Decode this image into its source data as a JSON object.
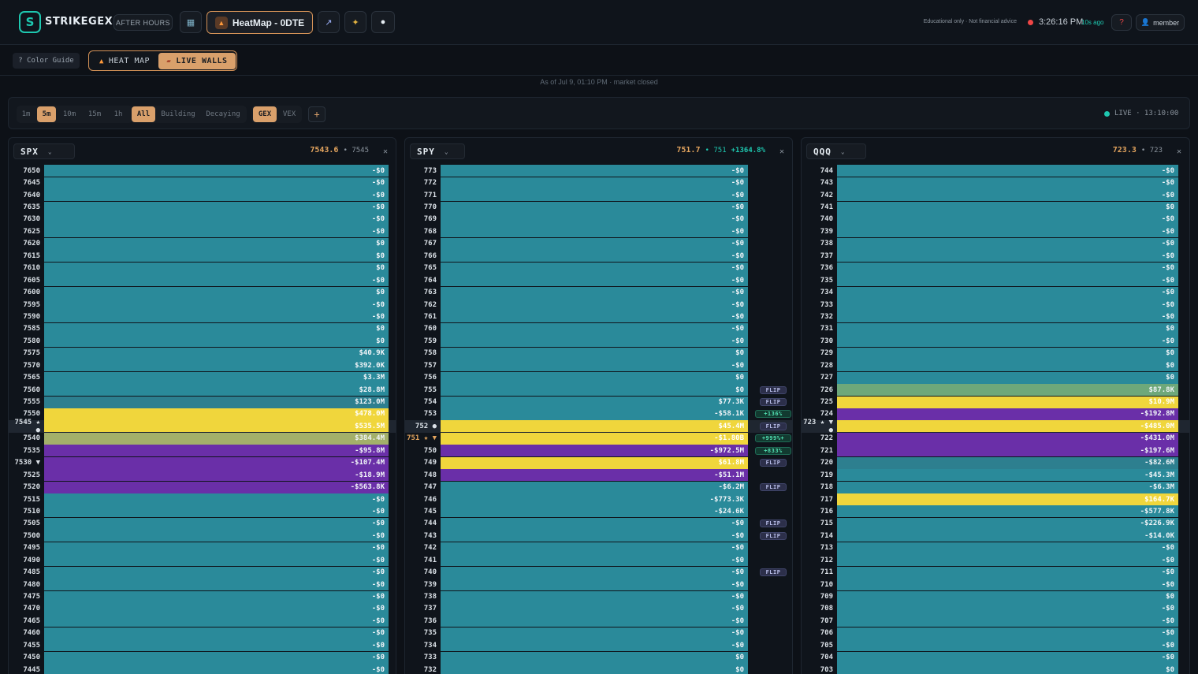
{
  "topbar": {
    "brand": "STRIKEGEX",
    "logo_letter": "S",
    "after_hours": "AFTER HOURS",
    "heatmap_label": "HeatMap - 0DTE",
    "disclaimer": "Educational only · Not financial advice",
    "clock": "3:26:16 PM",
    "ago": "10s ago",
    "help": "?",
    "member": "member",
    "icons": [
      "book-icon",
      "flame-icon",
      "chart-icon",
      "sparkle-icon",
      "circle-icon",
      "user-icon"
    ],
    "colors": {
      "accent": "#d9a06b",
      "teal": "#1ec8b0",
      "alert": "#f04646"
    }
  },
  "bar2": {
    "color_guide": "? Color Guide",
    "tab_heat": "HEAT MAP",
    "tab_walls": "LIVE WALLS",
    "asof": "As of Jul 9, 01:10 PM · market closed"
  },
  "controls": {
    "timeframes": [
      "1m",
      "5m",
      "10m",
      "15m",
      "1h"
    ],
    "filters": [
      "All",
      "Building",
      "Decaying"
    ],
    "greeks": [
      "GEX",
      "VEX"
    ],
    "add": "+",
    "live": "LIVE · 13:10:00"
  },
  "colors": {
    "teal": "#2a8a9a",
    "tealLight": "#2d7f8f",
    "green": "#6ea87a",
    "olive": "#a3b06a",
    "yellow": "#f0d63c",
    "purple": "#6a2fa8",
    "purpleLight": "#5c3aa0"
  },
  "panels": [
    {
      "symbol": "SPX",
      "price": "7543.6",
      "sub": "• 7545",
      "pct": "",
      "rows": [
        {
          "s": "7650",
          "v": "-$0",
          "c": "teal"
        },
        {
          "s": "7645",
          "v": "-$0",
          "c": "teal"
        },
        {
          "s": "7640",
          "v": "-$0",
          "c": "teal"
        },
        {
          "s": "7635",
          "v": "-$0",
          "c": "teal"
        },
        {
          "s": "7630",
          "v": "-$0",
          "c": "teal"
        },
        {
          "s": "7625",
          "v": "-$0",
          "c": "teal"
        },
        {
          "s": "7620",
          "v": "$0",
          "c": "teal"
        },
        {
          "s": "7615",
          "v": "$0",
          "c": "teal"
        },
        {
          "s": "7610",
          "v": "$0",
          "c": "teal"
        },
        {
          "s": "7605",
          "v": "-$0",
          "c": "teal"
        },
        {
          "s": "7600",
          "v": "$0",
          "c": "teal"
        },
        {
          "s": "7595",
          "v": "-$0",
          "c": "teal"
        },
        {
          "s": "7590",
          "v": "-$0",
          "c": "teal"
        },
        {
          "s": "7585",
          "v": "$0",
          "c": "teal"
        },
        {
          "s": "7580",
          "v": "$0",
          "c": "teal"
        },
        {
          "s": "7575",
          "v": "$40.9K",
          "c": "teal"
        },
        {
          "s": "7570",
          "v": "$392.0K",
          "c": "teal"
        },
        {
          "s": "7565",
          "v": "$3.3M",
          "c": "teal"
        },
        {
          "s": "7560",
          "v": "$28.8M",
          "c": "teal"
        },
        {
          "s": "7555",
          "v": "$123.0M",
          "c": "tealLight"
        },
        {
          "s": "7550",
          "v": "$478.0M",
          "c": "yellow"
        },
        {
          "s": "7545 ★ ●",
          "v": "$535.5M",
          "c": "yellow",
          "hl": true
        },
        {
          "s": "7540",
          "v": "$384.4M",
          "c": "olive"
        },
        {
          "s": "7535",
          "v": "-$95.8M",
          "c": "purple"
        },
        {
          "s": "7530 ▼",
          "v": "-$107.4M",
          "c": "purple"
        },
        {
          "s": "7525",
          "v": "-$18.9M",
          "c": "purple"
        },
        {
          "s": "7520",
          "v": "-$563.8K",
          "c": "purple"
        },
        {
          "s": "7515",
          "v": "-$0",
          "c": "teal"
        },
        {
          "s": "7510",
          "v": "-$0",
          "c": "teal"
        },
        {
          "s": "7505",
          "v": "-$0",
          "c": "teal"
        },
        {
          "s": "7500",
          "v": "-$0",
          "c": "teal"
        },
        {
          "s": "7495",
          "v": "-$0",
          "c": "teal"
        },
        {
          "s": "7490",
          "v": "-$0",
          "c": "teal"
        },
        {
          "s": "7485",
          "v": "-$0",
          "c": "teal"
        },
        {
          "s": "7480",
          "v": "-$0",
          "c": "teal"
        },
        {
          "s": "7475",
          "v": "-$0",
          "c": "teal"
        },
        {
          "s": "7470",
          "v": "-$0",
          "c": "teal"
        },
        {
          "s": "7465",
          "v": "-$0",
          "c": "teal"
        },
        {
          "s": "7460",
          "v": "-$0",
          "c": "teal"
        },
        {
          "s": "7455",
          "v": "-$0",
          "c": "teal"
        },
        {
          "s": "7450",
          "v": "-$0",
          "c": "teal"
        },
        {
          "s": "7445",
          "v": "-$0",
          "c": "teal"
        }
      ]
    },
    {
      "symbol": "SPY",
      "price": "751.7",
      "sub": "• 751",
      "pct": "+1364.8%",
      "rows": [
        {
          "s": "773",
          "v": "-$0",
          "c": "teal"
        },
        {
          "s": "772",
          "v": "-$0",
          "c": "teal"
        },
        {
          "s": "771",
          "v": "-$0",
          "c": "teal"
        },
        {
          "s": "770",
          "v": "-$0",
          "c": "teal"
        },
        {
          "s": "769",
          "v": "-$0",
          "c": "teal"
        },
        {
          "s": "768",
          "v": "-$0",
          "c": "teal"
        },
        {
          "s": "767",
          "v": "-$0",
          "c": "teal"
        },
        {
          "s": "766",
          "v": "-$0",
          "c": "teal"
        },
        {
          "s": "765",
          "v": "-$0",
          "c": "teal"
        },
        {
          "s": "764",
          "v": "-$0",
          "c": "teal"
        },
        {
          "s": "763",
          "v": "-$0",
          "c": "teal"
        },
        {
          "s": "762",
          "v": "-$0",
          "c": "teal"
        },
        {
          "s": "761",
          "v": "-$0",
          "c": "teal"
        },
        {
          "s": "760",
          "v": "-$0",
          "c": "teal"
        },
        {
          "s": "759",
          "v": "-$0",
          "c": "teal"
        },
        {
          "s": "758",
          "v": "$0",
          "c": "teal"
        },
        {
          "s": "757",
          "v": "-$0",
          "c": "teal"
        },
        {
          "s": "756",
          "v": "$0",
          "c": "teal"
        },
        {
          "s": "755",
          "v": "$0",
          "c": "teal",
          "f": "FLIP"
        },
        {
          "s": "754",
          "v": "$77.3K",
          "c": "teal",
          "f": "FLIP"
        },
        {
          "s": "753",
          "v": "-$58.1K",
          "c": "teal",
          "p": "+136%"
        },
        {
          "s": "752 ●",
          "v": "$45.4M",
          "c": "yellow",
          "f": "FLIP",
          "hl": true
        },
        {
          "s": "751 ★ ▼",
          "v": "-$1.80B",
          "c": "yellow",
          "p": "+999%+",
          "orange": true
        },
        {
          "s": "750",
          "v": "-$972.5M",
          "c": "purple",
          "p": "+833%"
        },
        {
          "s": "749",
          "v": "$61.8M",
          "c": "yellow",
          "f": "FLIP"
        },
        {
          "s": "748",
          "v": "-$51.1M",
          "c": "purple"
        },
        {
          "s": "747",
          "v": "-$6.2M",
          "c": "teal",
          "f": "FLIP"
        },
        {
          "s": "746",
          "v": "-$773.3K",
          "c": "teal"
        },
        {
          "s": "745",
          "v": "-$24.6K",
          "c": "teal"
        },
        {
          "s": "744",
          "v": "-$0",
          "c": "teal",
          "f": "FLIP"
        },
        {
          "s": "743",
          "v": "-$0",
          "c": "teal",
          "f": "FLIP"
        },
        {
          "s": "742",
          "v": "-$0",
          "c": "teal"
        },
        {
          "s": "741",
          "v": "-$0",
          "c": "teal"
        },
        {
          "s": "740",
          "v": "-$0",
          "c": "teal",
          "f": "FLIP"
        },
        {
          "s": "739",
          "v": "-$0",
          "c": "teal"
        },
        {
          "s": "738",
          "v": "-$0",
          "c": "teal"
        },
        {
          "s": "737",
          "v": "-$0",
          "c": "teal"
        },
        {
          "s": "736",
          "v": "-$0",
          "c": "teal"
        },
        {
          "s": "735",
          "v": "-$0",
          "c": "teal"
        },
        {
          "s": "734",
          "v": "-$0",
          "c": "teal"
        },
        {
          "s": "733",
          "v": "$0",
          "c": "teal"
        },
        {
          "s": "732",
          "v": "$0",
          "c": "teal"
        }
      ]
    },
    {
      "symbol": "QQQ",
      "price": "723.3",
      "sub": "• 723",
      "pct": "",
      "rows": [
        {
          "s": "744",
          "v": "-$0",
          "c": "teal"
        },
        {
          "s": "743",
          "v": "-$0",
          "c": "teal"
        },
        {
          "s": "742",
          "v": "-$0",
          "c": "teal"
        },
        {
          "s": "741",
          "v": "$0",
          "c": "teal"
        },
        {
          "s": "740",
          "v": "-$0",
          "c": "teal"
        },
        {
          "s": "739",
          "v": "-$0",
          "c": "teal"
        },
        {
          "s": "738",
          "v": "-$0",
          "c": "teal"
        },
        {
          "s": "737",
          "v": "-$0",
          "c": "teal"
        },
        {
          "s": "736",
          "v": "-$0",
          "c": "teal"
        },
        {
          "s": "735",
          "v": "-$0",
          "c": "teal"
        },
        {
          "s": "734",
          "v": "-$0",
          "c": "teal"
        },
        {
          "s": "733",
          "v": "-$0",
          "c": "teal"
        },
        {
          "s": "732",
          "v": "-$0",
          "c": "teal"
        },
        {
          "s": "731",
          "v": "$0",
          "c": "teal"
        },
        {
          "s": "730",
          "v": "-$0",
          "c": "teal"
        },
        {
          "s": "729",
          "v": "$0",
          "c": "teal"
        },
        {
          "s": "728",
          "v": "$0",
          "c": "teal"
        },
        {
          "s": "727",
          "v": "$0",
          "c": "teal"
        },
        {
          "s": "726",
          "v": "$87.8K",
          "c": "green"
        },
        {
          "s": "725",
          "v": "$10.9M",
          "c": "yellow"
        },
        {
          "s": "724",
          "v": "-$192.8M",
          "c": "purple"
        },
        {
          "s": "723 ★ ▼ ●",
          "v": "-$485.0M",
          "c": "yellow",
          "hl": true
        },
        {
          "s": "722",
          "v": "-$431.0M",
          "c": "purple"
        },
        {
          "s": "721",
          "v": "-$197.6M",
          "c": "purple"
        },
        {
          "s": "720",
          "v": "-$82.6M",
          "c": "tealLight"
        },
        {
          "s": "719",
          "v": "-$45.3M",
          "c": "teal"
        },
        {
          "s": "718",
          "v": "-$6.3M",
          "c": "teal"
        },
        {
          "s": "717",
          "v": "$164.7K",
          "c": "yellow"
        },
        {
          "s": "716",
          "v": "-$577.8K",
          "c": "teal"
        },
        {
          "s": "715",
          "v": "-$226.9K",
          "c": "teal"
        },
        {
          "s": "714",
          "v": "-$14.0K",
          "c": "teal"
        },
        {
          "s": "713",
          "v": "-$0",
          "c": "teal"
        },
        {
          "s": "712",
          "v": "-$0",
          "c": "teal"
        },
        {
          "s": "711",
          "v": "-$0",
          "c": "teal"
        },
        {
          "s": "710",
          "v": "-$0",
          "c": "teal"
        },
        {
          "s": "709",
          "v": "$0",
          "c": "teal"
        },
        {
          "s": "708",
          "v": "-$0",
          "c": "teal"
        },
        {
          "s": "707",
          "v": "-$0",
          "c": "teal"
        },
        {
          "s": "706",
          "v": "-$0",
          "c": "teal"
        },
        {
          "s": "705",
          "v": "-$0",
          "c": "teal"
        },
        {
          "s": "704",
          "v": "-$0",
          "c": "teal"
        },
        {
          "s": "703",
          "v": "$0",
          "c": "teal"
        }
      ]
    }
  ]
}
